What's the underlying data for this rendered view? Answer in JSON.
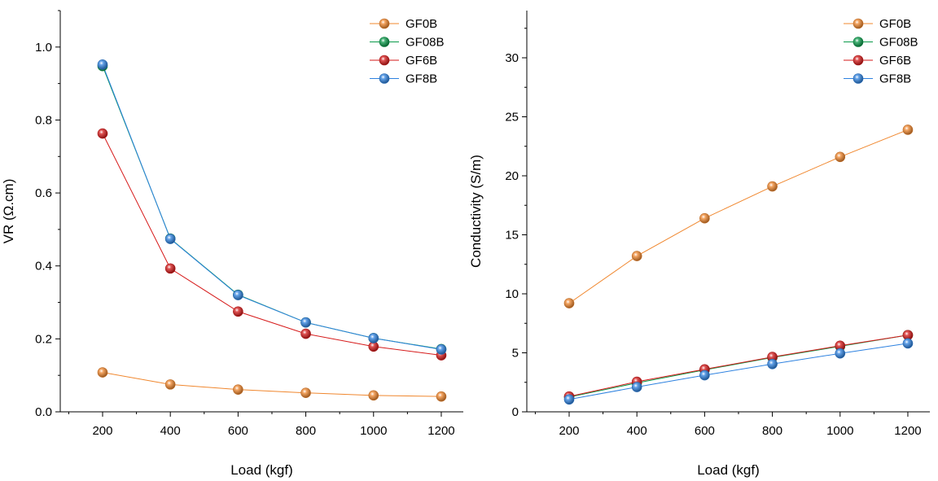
{
  "chart_data": [
    {
      "type": "line",
      "xlabel": "Load (kgf)",
      "ylabel": "VR (Ω.cm)",
      "x": [
        200,
        400,
        600,
        800,
        1000,
        1200
      ],
      "xlim": [
        75,
        1265
      ],
      "ylim": [
        0,
        1.1
      ],
      "xticks": [
        200,
        400,
        600,
        800,
        1000,
        1200
      ],
      "yticks": [
        0.0,
        0.2,
        0.4,
        0.6,
        0.8,
        1.0
      ],
      "ytick_labels": [
        "0.0",
        "0.2",
        "0.4",
        "0.6",
        "0.8",
        "1.0"
      ],
      "legend_position": "top-right",
      "grid": false,
      "series": [
        {
          "name": "GF0B",
          "color": "#f0872e",
          "values": [
            0.108,
            0.075,
            0.061,
            0.052,
            0.045,
            0.042
          ]
        },
        {
          "name": "GF08B",
          "color": "#0a9a4a",
          "values": [
            0.948,
            0.475,
            0.321,
            0.245,
            0.202,
            0.172
          ]
        },
        {
          "name": "GF6B",
          "color": "#d61a1a",
          "values": [
            0.763,
            0.393,
            0.275,
            0.214,
            0.179,
            0.155
          ]
        },
        {
          "name": "GF8B",
          "color": "#2e82e0",
          "values": [
            0.952,
            0.474,
            0.32,
            0.245,
            0.202,
            0.171
          ]
        }
      ]
    },
    {
      "type": "line",
      "xlabel": "Load (kgf)",
      "ylabel": "Conductivity (S/m)",
      "x": [
        200,
        400,
        600,
        800,
        1000,
        1200
      ],
      "xlim": [
        75,
        1265
      ],
      "ylim": [
        0,
        34
      ],
      "xticks": [
        200,
        400,
        600,
        800,
        1000,
        1200
      ],
      "yticks": [
        0,
        5,
        10,
        15,
        20,
        25,
        30
      ],
      "ytick_labels": [
        "0",
        "5",
        "10",
        "15",
        "20",
        "25",
        "30"
      ],
      "legend_position": "top-right",
      "grid": false,
      "series": [
        {
          "name": "GF0B",
          "color": "#f0872e",
          "values": [
            9.2,
            13.2,
            16.4,
            19.1,
            21.6,
            23.9
          ]
        },
        {
          "name": "GF08B",
          "color": "#0a9a4a",
          "values": [
            1.25,
            2.45,
            3.55,
            4.6,
            5.55,
            6.5
          ]
        },
        {
          "name": "GF6B",
          "color": "#d61a1a",
          "values": [
            1.3,
            2.55,
            3.6,
            4.65,
            5.6,
            6.5
          ]
        },
        {
          "name": "GF8B",
          "color": "#2e82e0",
          "values": [
            1.05,
            2.1,
            3.1,
            4.05,
            4.95,
            5.8
          ]
        }
      ]
    }
  ]
}
